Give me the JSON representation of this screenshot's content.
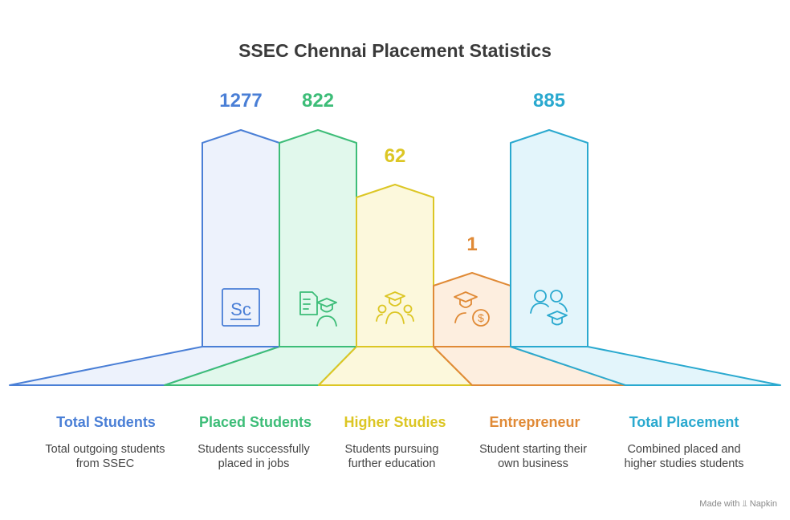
{
  "title": "SSEC Chennai Placement Statistics",
  "colors": {
    "total_students": "#4a7fd6",
    "placed_students": "#3dbd78",
    "higher_studies": "#dcc624",
    "entrepreneur": "#e08a36",
    "total_placement": "#2aa9cf"
  },
  "items": [
    {
      "value": "1277",
      "label": "Total Students",
      "desc_line1": "Total outgoing students",
      "desc_line2": "from SSEC",
      "icon": "sc-document-icon"
    },
    {
      "value": "822",
      "label": "Placed Students",
      "desc_line1": "Students successfully",
      "desc_line2": "placed in jobs",
      "icon": "graduate-resume-icon"
    },
    {
      "value": "62",
      "label": "Higher Studies",
      "desc_line1": "Students pursuing",
      "desc_line2": "further education",
      "icon": "graduate-group-icon"
    },
    {
      "value": "1",
      "label": "Entrepreneur",
      "desc_line1": "Student starting their",
      "desc_line2": "own business",
      "icon": "graduate-dollar-icon"
    },
    {
      "value": "885",
      "label": "Total Placement",
      "desc_line1": "Combined placed and",
      "desc_line2": "higher studies students",
      "icon": "people-graduate-icon"
    }
  ],
  "footer": {
    "made_with": "Made with",
    "brand": "Napkin"
  }
}
